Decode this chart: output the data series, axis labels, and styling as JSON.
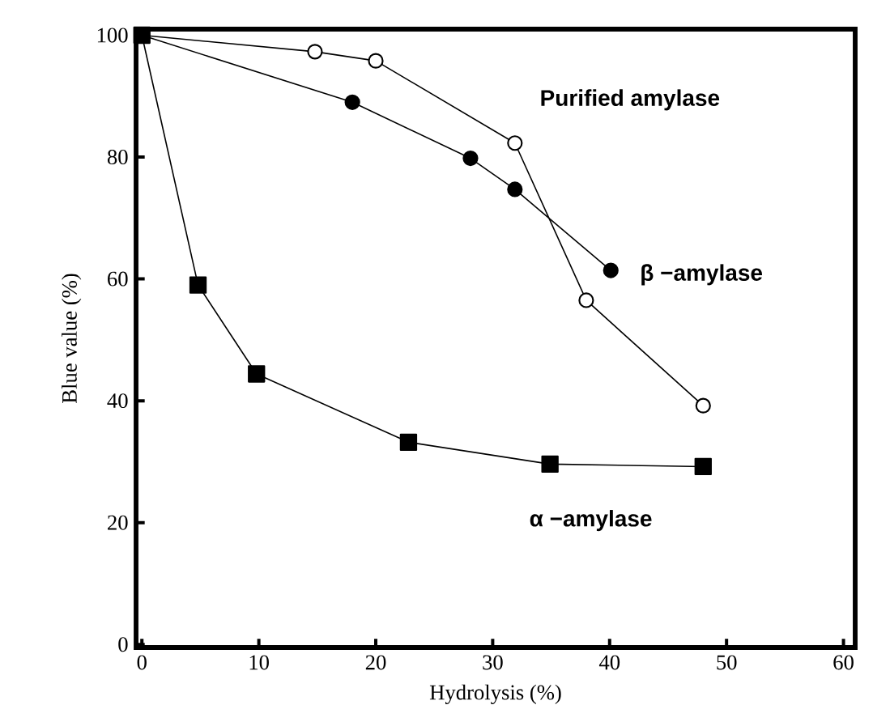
{
  "chart_data": {
    "type": "line",
    "xlabel": "Hydrolysis (%)",
    "ylabel": "Blue value (%)",
    "xlim": [
      -0.5,
      61
    ],
    "ylim": [
      -0.5,
      101
    ],
    "xticks": [
      0,
      10,
      20,
      30,
      40,
      50,
      60
    ],
    "yticks": [
      0,
      20,
      40,
      60,
      80,
      100
    ],
    "grid": false,
    "legend": false,
    "line_style": "solid",
    "series": [
      {
        "name": "α −amylase",
        "color": "#000000",
        "marker": "square",
        "x": [
          0,
          4.8,
          9.8,
          22.8,
          34.9,
          48
        ],
        "values": [
          100,
          59,
          44.4,
          33.2,
          29.6,
          29.2
        ]
      },
      {
        "name": "Purified amylase",
        "color": "#ffffff",
        "marker": "circle",
        "x": [
          0,
          14.8,
          20,
          31.9,
          38,
          48
        ],
        "values": [
          100,
          97.3,
          95.8,
          82.3,
          56.5,
          39.2
        ]
      },
      {
        "name": "β −amylase",
        "color": "#000000",
        "marker": "circle",
        "x": [
          0,
          18,
          28.1,
          31.9,
          40.1
        ],
        "values": [
          100,
          89,
          79.8,
          74.7,
          61.4
        ]
      }
    ]
  }
}
